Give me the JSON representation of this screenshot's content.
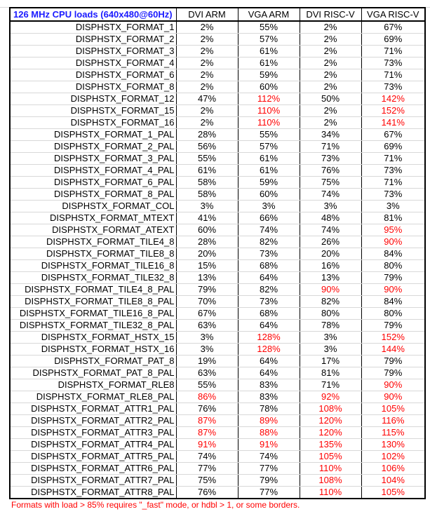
{
  "title": "126 MHz CPU loads (640x480@60Hz)",
  "headers": [
    "DVI ARM",
    "VGA ARM",
    "DVI RISC-V",
    "VGA RISC-V"
  ],
  "rows": [
    {
      "name": "DISPHSTX_FORMAT_1",
      "vals": [
        "2%",
        "55%",
        "2%",
        "67%"
      ],
      "red": [
        false,
        false,
        false,
        false
      ]
    },
    {
      "name": "DISPHSTX_FORMAT_2",
      "vals": [
        "2%",
        "57%",
        "2%",
        "69%"
      ],
      "red": [
        false,
        false,
        false,
        false
      ]
    },
    {
      "name": "DISPHSTX_FORMAT_3",
      "vals": [
        "2%",
        "61%",
        "2%",
        "71%"
      ],
      "red": [
        false,
        false,
        false,
        false
      ]
    },
    {
      "name": "DISPHSTX_FORMAT_4",
      "vals": [
        "2%",
        "61%",
        "2%",
        "73%"
      ],
      "red": [
        false,
        false,
        false,
        false
      ]
    },
    {
      "name": "DISPHSTX_FORMAT_6",
      "vals": [
        "2%",
        "59%",
        "2%",
        "71%"
      ],
      "red": [
        false,
        false,
        false,
        false
      ]
    },
    {
      "name": "DISPHSTX_FORMAT_8",
      "vals": [
        "2%",
        "60%",
        "2%",
        "73%"
      ],
      "red": [
        false,
        false,
        false,
        false
      ]
    },
    {
      "name": "DISPHSTX_FORMAT_12",
      "vals": [
        "47%",
        "112%",
        "50%",
        "142%"
      ],
      "red": [
        false,
        true,
        false,
        true
      ]
    },
    {
      "name": "DISPHSTX_FORMAT_15",
      "vals": [
        "2%",
        "110%",
        "2%",
        "152%"
      ],
      "red": [
        false,
        true,
        false,
        true
      ]
    },
    {
      "name": "DISPHSTX_FORMAT_16",
      "vals": [
        "2%",
        "110%",
        "2%",
        "141%"
      ],
      "red": [
        false,
        true,
        false,
        true
      ]
    },
    {
      "name": "DISPHSTX_FORMAT_1_PAL",
      "vals": [
        "28%",
        "55%",
        "34%",
        "67%"
      ],
      "red": [
        false,
        false,
        false,
        false
      ]
    },
    {
      "name": "DISPHSTX_FORMAT_2_PAL",
      "vals": [
        "56%",
        "57%",
        "71%",
        "69%"
      ],
      "red": [
        false,
        false,
        false,
        false
      ]
    },
    {
      "name": "DISPHSTX_FORMAT_3_PAL",
      "vals": [
        "55%",
        "61%",
        "73%",
        "71%"
      ],
      "red": [
        false,
        false,
        false,
        false
      ]
    },
    {
      "name": "DISPHSTX_FORMAT_4_PAL",
      "vals": [
        "61%",
        "61%",
        "76%",
        "73%"
      ],
      "red": [
        false,
        false,
        false,
        false
      ]
    },
    {
      "name": "DISPHSTX_FORMAT_6_PAL",
      "vals": [
        "58%",
        "59%",
        "75%",
        "71%"
      ],
      "red": [
        false,
        false,
        false,
        false
      ]
    },
    {
      "name": "DISPHSTX_FORMAT_8_PAL",
      "vals": [
        "58%",
        "60%",
        "74%",
        "73%"
      ],
      "red": [
        false,
        false,
        false,
        false
      ]
    },
    {
      "name": "DISPHSTX_FORMAT_COL",
      "vals": [
        "3%",
        "3%",
        "3%",
        "3%"
      ],
      "red": [
        false,
        false,
        false,
        false
      ]
    },
    {
      "name": "DISPHSTX_FORMAT_MTEXT",
      "vals": [
        "41%",
        "66%",
        "48%",
        "81%"
      ],
      "red": [
        false,
        false,
        false,
        false
      ]
    },
    {
      "name": "DISPHSTX_FORMAT_ATEXT",
      "vals": [
        "60%",
        "74%",
        "74%",
        "95%"
      ],
      "red": [
        false,
        false,
        false,
        true
      ]
    },
    {
      "name": "DISPHSTX_FORMAT_TILE4_8",
      "vals": [
        "28%",
        "82%",
        "26%",
        "90%"
      ],
      "red": [
        false,
        false,
        false,
        true
      ]
    },
    {
      "name": "DISPHSTX_FORMAT_TILE8_8",
      "vals": [
        "20%",
        "73%",
        "20%",
        "84%"
      ],
      "red": [
        false,
        false,
        false,
        false
      ]
    },
    {
      "name": "DISPHSTX_FORMAT_TILE16_8",
      "vals": [
        "15%",
        "68%",
        "16%",
        "80%"
      ],
      "red": [
        false,
        false,
        false,
        false
      ]
    },
    {
      "name": "DISPHSTX_FORMAT_TILE32_8",
      "vals": [
        "13%",
        "64%",
        "13%",
        "79%"
      ],
      "red": [
        false,
        false,
        false,
        false
      ]
    },
    {
      "name": "DISPHSTX_FORMAT_TILE4_8_PAL",
      "vals": [
        "79%",
        "82%",
        "90%",
        "90%"
      ],
      "red": [
        false,
        false,
        true,
        true
      ]
    },
    {
      "name": "DISPHSTX_FORMAT_TILE8_8_PAL",
      "vals": [
        "70%",
        "73%",
        "82%",
        "84%"
      ],
      "red": [
        false,
        false,
        false,
        false
      ]
    },
    {
      "name": "DISPHSTX_FORMAT_TILE16_8_PAL",
      "vals": [
        "67%",
        "68%",
        "80%",
        "80%"
      ],
      "red": [
        false,
        false,
        false,
        false
      ]
    },
    {
      "name": "DISPHSTX_FORMAT_TILE32_8_PAL",
      "vals": [
        "63%",
        "64%",
        "78%",
        "79%"
      ],
      "red": [
        false,
        false,
        false,
        false
      ]
    },
    {
      "name": "DISPHSTX_FORMAT_HSTX_15",
      "vals": [
        "3%",
        "128%",
        "3%",
        "152%"
      ],
      "red": [
        false,
        true,
        false,
        true
      ]
    },
    {
      "name": "DISPHSTX_FORMAT_HSTX_16",
      "vals": [
        "3%",
        "128%",
        "3%",
        "144%"
      ],
      "red": [
        false,
        true,
        false,
        true
      ]
    },
    {
      "name": "DISPHSTX_FORMAT_PAT_8",
      "vals": [
        "19%",
        "64%",
        "17%",
        "79%"
      ],
      "red": [
        false,
        false,
        false,
        false
      ]
    },
    {
      "name": "DISPHSTX_FORMAT_PAT_8_PAL",
      "vals": [
        "63%",
        "64%",
        "81%",
        "79%"
      ],
      "red": [
        false,
        false,
        false,
        false
      ]
    },
    {
      "name": "DISPHSTX_FORMAT_RLE8",
      "vals": [
        "55%",
        "83%",
        "71%",
        "90%"
      ],
      "red": [
        false,
        false,
        false,
        true
      ]
    },
    {
      "name": "DISPHSTX_FORMAT_RLE8_PAL",
      "vals": [
        "86%",
        "83%",
        "92%",
        "90%"
      ],
      "red": [
        true,
        false,
        true,
        true
      ]
    },
    {
      "name": "DISPHSTX_FORMAT_ATTR1_PAL",
      "vals": [
        "76%",
        "78%",
        "108%",
        "105%"
      ],
      "red": [
        false,
        false,
        true,
        true
      ]
    },
    {
      "name": "DISPHSTX_FORMAT_ATTR2_PAL",
      "vals": [
        "87%",
        "89%",
        "120%",
        "116%"
      ],
      "red": [
        true,
        true,
        true,
        true
      ]
    },
    {
      "name": "DISPHSTX_FORMAT_ATTR3_PAL",
      "vals": [
        "87%",
        "88%",
        "120%",
        "115%"
      ],
      "red": [
        true,
        true,
        true,
        true
      ]
    },
    {
      "name": "DISPHSTX_FORMAT_ATTR4_PAL",
      "vals": [
        "91%",
        "91%",
        "135%",
        "130%"
      ],
      "red": [
        true,
        true,
        true,
        true
      ]
    },
    {
      "name": "DISPHSTX_FORMAT_ATTR5_PAL",
      "vals": [
        "74%",
        "74%",
        "105%",
        "102%"
      ],
      "red": [
        false,
        false,
        true,
        true
      ]
    },
    {
      "name": "DISPHSTX_FORMAT_ATTR6_PAL",
      "vals": [
        "77%",
        "77%",
        "110%",
        "106%"
      ],
      "red": [
        false,
        false,
        true,
        true
      ]
    },
    {
      "name": "DISPHSTX_FORMAT_ATTR7_PAL",
      "vals": [
        "75%",
        "79%",
        "108%",
        "104%"
      ],
      "red": [
        false,
        false,
        true,
        true
      ]
    },
    {
      "name": "DISPHSTX_FORMAT_ATTR8_PAL",
      "vals": [
        "76%",
        "77%",
        "110%",
        "105%"
      ],
      "red": [
        false,
        false,
        true,
        true
      ]
    }
  ],
  "note": "Formats with load > 85% requires \"_fast\" mode, or hdbl > 1, or some borders.",
  "colors": {
    "title": "#1a1aff",
    "highlight": "#ff0000",
    "grid": "#d8d8d8"
  }
}
